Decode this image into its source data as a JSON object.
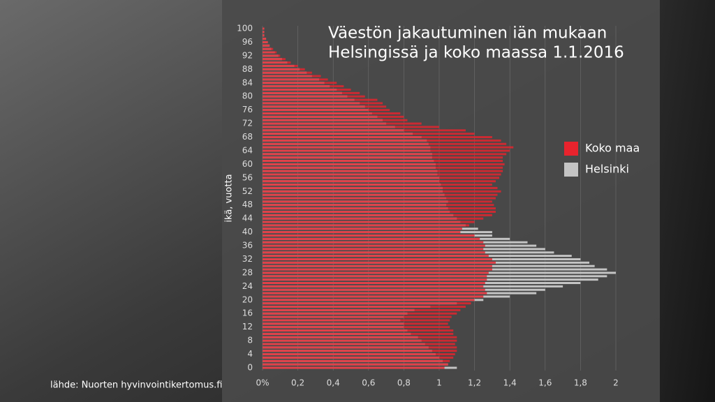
{
  "chart_data": {
    "type": "barh",
    "title": [
      "Väestön jakautuminen iän mukaan",
      "Helsingissä ja koko maassa 1.1.2016"
    ],
    "ylabel": "ikä, vuotta",
    "source": "lähde: Nuorten hyvinvointikertomus.fi",
    "legend": "right",
    "grid": true,
    "y": [
      0,
      1,
      2,
      3,
      4,
      5,
      6,
      7,
      8,
      9,
      10,
      11,
      12,
      13,
      14,
      15,
      16,
      17,
      18,
      19,
      20,
      21,
      22,
      23,
      24,
      25,
      26,
      27,
      28,
      29,
      30,
      31,
      32,
      33,
      34,
      35,
      36,
      37,
      38,
      39,
      40,
      41,
      42,
      43,
      44,
      45,
      46,
      47,
      48,
      49,
      50,
      51,
      52,
      53,
      54,
      55,
      56,
      57,
      58,
      59,
      60,
      61,
      62,
      63,
      64,
      65,
      66,
      67,
      68,
      69,
      70,
      71,
      72,
      73,
      74,
      75,
      76,
      77,
      78,
      79,
      80,
      81,
      82,
      83,
      84,
      85,
      86,
      87,
      88,
      89,
      90,
      91,
      92,
      93,
      94,
      95,
      96,
      97,
      98,
      99,
      100
    ],
    "ylim": [
      0,
      100
    ],
    "yticks": [
      0,
      4,
      8,
      12,
      16,
      20,
      24,
      28,
      32,
      36,
      40,
      44,
      48,
      52,
      56,
      60,
      64,
      68,
      72,
      76,
      80,
      84,
      88,
      92,
      96,
      100
    ],
    "xlim": [
      0,
      2
    ],
    "xticks": [
      {
        "value": 0,
        "label": "0%"
      },
      {
        "value": 0.2,
        "label": "0,2"
      },
      {
        "value": 0.4,
        "label": "0,4"
      },
      {
        "value": 0.6,
        "label": "0,6"
      },
      {
        "value": 0.8,
        "label": "0,8"
      },
      1,
      {
        "value": 1.2,
        "label": "1,2"
      },
      {
        "value": 1.4,
        "label": "1,4"
      },
      {
        "value": 1.6,
        "label": "1,6"
      },
      {
        "value": 1.8,
        "label": "1,8"
      },
      2
    ],
    "series": [
      {
        "name": "Helsinki",
        "color": "#c4c4c4",
        "values": [
          1.1,
          1.05,
          1.02,
          1.0,
          0.98,
          0.96,
          0.94,
          0.92,
          0.9,
          0.88,
          0.84,
          0.82,
          0.8,
          0.8,
          0.78,
          0.8,
          0.82,
          0.86,
          0.95,
          1.1,
          1.25,
          1.4,
          1.55,
          1.6,
          1.7,
          1.8,
          1.9,
          1.95,
          2.0,
          1.95,
          1.88,
          1.85,
          1.8,
          1.75,
          1.65,
          1.6,
          1.55,
          1.5,
          1.4,
          1.3,
          1.3,
          1.22,
          1.15,
          1.12,
          1.1,
          1.08,
          1.06,
          1.05,
          1.04,
          1.05,
          1.04,
          1.03,
          1.02,
          1.02,
          1.01,
          1.0,
          1.0,
          0.99,
          0.99,
          0.98,
          0.98,
          0.97,
          0.96,
          0.96,
          0.95,
          0.95,
          0.94,
          0.93,
          0.9,
          0.85,
          0.8,
          0.75,
          0.7,
          0.68,
          0.65,
          0.62,
          0.6,
          0.58,
          0.55,
          0.52,
          0.48,
          0.45,
          0.42,
          0.38,
          0.35,
          0.32,
          0.28,
          0.25,
          0.21,
          0.18,
          0.14,
          0.11,
          0.09,
          0.07,
          0.05,
          0.04,
          0.03,
          0.02,
          0.01,
          0.01,
          0.01
        ]
      },
      {
        "name": "Koko maa",
        "color": "#e8232d",
        "values": [
          1.03,
          1.05,
          1.06,
          1.08,
          1.09,
          1.1,
          1.1,
          1.09,
          1.1,
          1.1,
          1.08,
          1.08,
          1.06,
          1.05,
          1.06,
          1.07,
          1.1,
          1.12,
          1.15,
          1.18,
          1.2,
          1.25,
          1.27,
          1.26,
          1.25,
          1.26,
          1.27,
          1.27,
          1.28,
          1.3,
          1.3,
          1.32,
          1.3,
          1.28,
          1.26,
          1.25,
          1.26,
          1.25,
          1.23,
          1.2,
          1.12,
          1.13,
          1.17,
          1.2,
          1.25,
          1.3,
          1.32,
          1.32,
          1.31,
          1.3,
          1.32,
          1.33,
          1.35,
          1.33,
          1.3,
          1.32,
          1.34,
          1.35,
          1.36,
          1.36,
          1.37,
          1.36,
          1.36,
          1.38,
          1.4,
          1.42,
          1.38,
          1.35,
          1.3,
          1.2,
          1.15,
          1.0,
          0.9,
          0.82,
          0.8,
          0.78,
          0.72,
          0.7,
          0.68,
          0.65,
          0.58,
          0.55,
          0.5,
          0.46,
          0.42,
          0.37,
          0.33,
          0.28,
          0.24,
          0.2,
          0.16,
          0.13,
          0.1,
          0.08,
          0.06,
          0.04,
          0.03,
          0.02,
          0.01,
          0.01,
          0.01
        ]
      }
    ]
  }
}
